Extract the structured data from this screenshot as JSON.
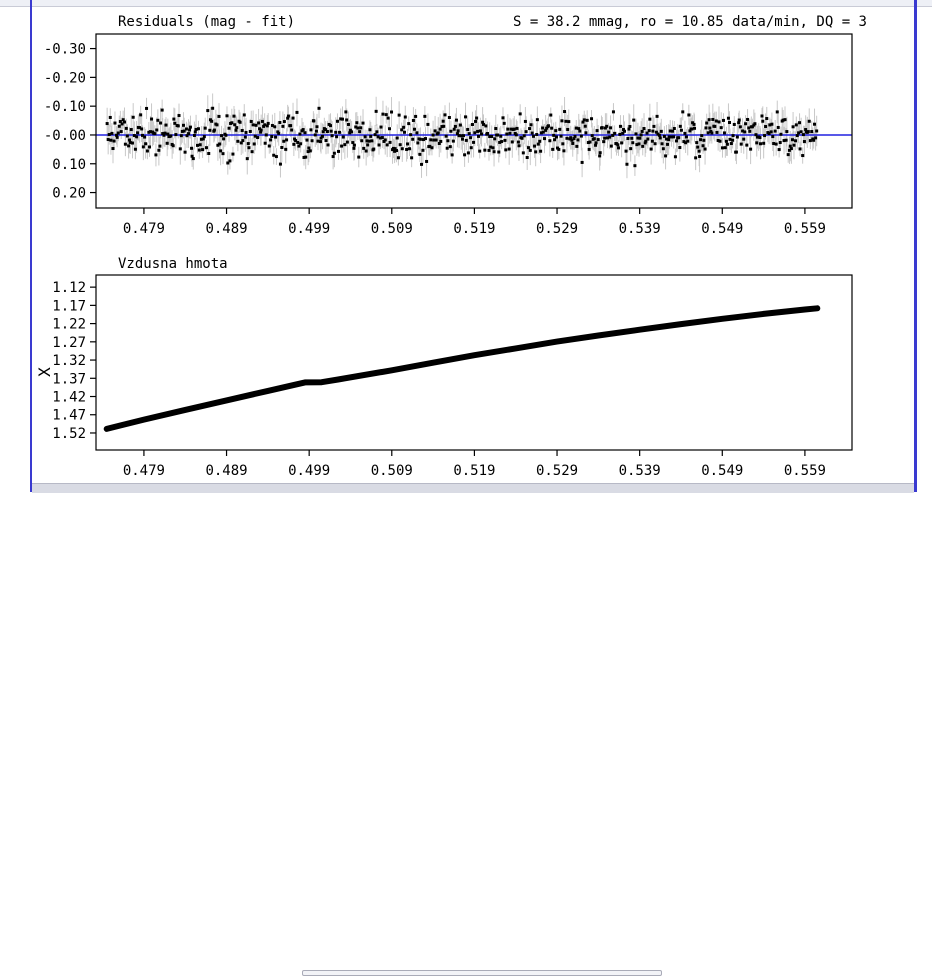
{
  "chart_data": [
    {
      "type": "scatter",
      "title": "Residuals (mag - fit)",
      "stats_text": "S = 38.2 mmag, ro = 10.85 data/min, DQ = 3",
      "xlabel": "",
      "ylabel": "",
      "xlim": [
        0.4732,
        0.5647
      ],
      "ylim": [
        0.2536,
        -0.3506
      ],
      "y_inverted": true,
      "x_ticks": [
        "0.479",
        "0.489",
        "0.499",
        "0.509",
        "0.519",
        "0.529",
        "0.539",
        "0.549",
        "0.559"
      ],
      "y_ticks": [
        "-0.30",
        "-0.20",
        "-0.10",
        "-0.00",
        "0.10",
        "0.20"
      ],
      "data_x_range": [
        0.4745,
        0.5605
      ],
      "residual_scatter_sd": 0.0382,
      "zero_line": 0.0,
      "series": [
        {
          "values": "dense residual points with grey error bars, roughly -0.15 to +0.13"
        }
      ],
      "colors": {
        "points": "#000000",
        "errorbars": "#c8c8c8",
        "zero_line": "#2020e0",
        "axes": "#000000"
      }
    },
    {
      "type": "line",
      "title": "Vzdusna hmota",
      "xlabel": "",
      "ylabel": "X",
      "xlim": [
        0.4732,
        0.5647
      ],
      "ylim": [
        1.5667,
        1.0867
      ],
      "y_inverted": true,
      "x_ticks": [
        "0.479",
        "0.489",
        "0.499",
        "0.509",
        "0.519",
        "0.529",
        "0.539",
        "0.549",
        "0.559"
      ],
      "y_ticks": [
        "1.12",
        "1.17",
        "1.22",
        "1.27",
        "1.32",
        "1.37",
        "1.42",
        "1.47",
        "1.52"
      ],
      "x": [
        0.4745,
        0.479,
        0.484,
        0.489,
        0.494,
        0.4985,
        0.5005,
        0.5025,
        0.509,
        0.514,
        0.519,
        0.524,
        0.529,
        0.534,
        0.539,
        0.544,
        0.549,
        0.554,
        0.559,
        0.5605
      ],
      "y": [
        1.5087,
        1.4833,
        1.4567,
        1.4307,
        1.4047,
        1.3813,
        1.3807,
        1.3733,
        1.348,
        1.3273,
        1.3067,
        1.288,
        1.2693,
        1.2527,
        1.2367,
        1.2213,
        1.2067,
        1.1933,
        1.1813,
        1.178
      ],
      "colors": {
        "line": "#000000",
        "axes": "#000000"
      }
    }
  ]
}
